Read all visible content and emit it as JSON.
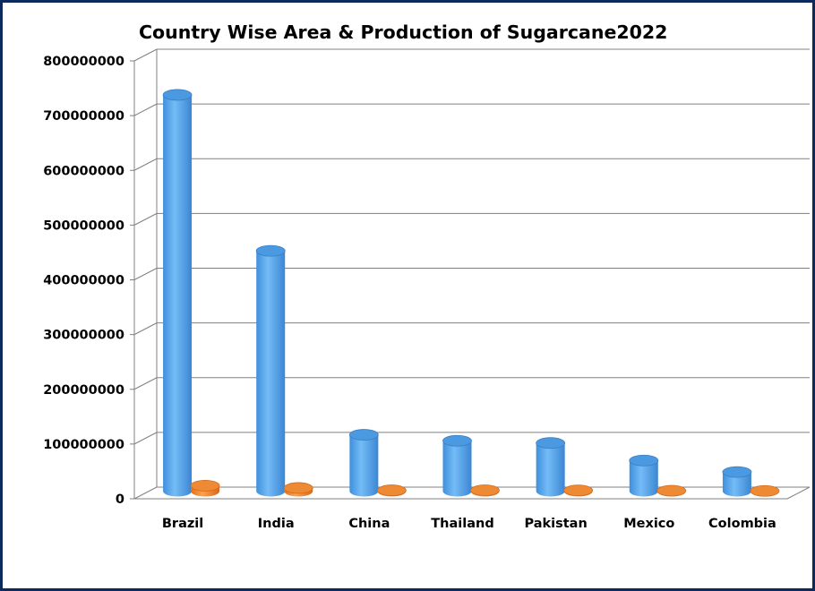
{
  "chart_data": {
    "type": "bar",
    "style": "3d-cylinder",
    "title": "Country Wise Area & Production of Sugarcane2022",
    "xlabel": "",
    "ylabel": "",
    "categories": [
      "Brazil",
      "India",
      "China",
      "Thailand",
      "Pakistan",
      "Mexico",
      "Colombia"
    ],
    "series": [
      {
        "color": "#5aa8ec",
        "values": [
          724000000,
          439000000,
          103000000,
          92000000,
          88000000,
          56000000,
          35000000
        ]
      },
      {
        "color": "#f08a2c",
        "values": [
          10000000,
          5800000,
          1500000,
          1600000,
          1400000,
          800000,
          400000
        ]
      }
    ],
    "ylim": [
      0,
      800000000
    ],
    "ytick_step": 100000000,
    "yticks": [
      "0",
      "100000000",
      "200000000",
      "300000000",
      "400000000",
      "500000000",
      "600000000",
      "700000000",
      "800000000"
    ],
    "grid": true,
    "legend": "none"
  }
}
